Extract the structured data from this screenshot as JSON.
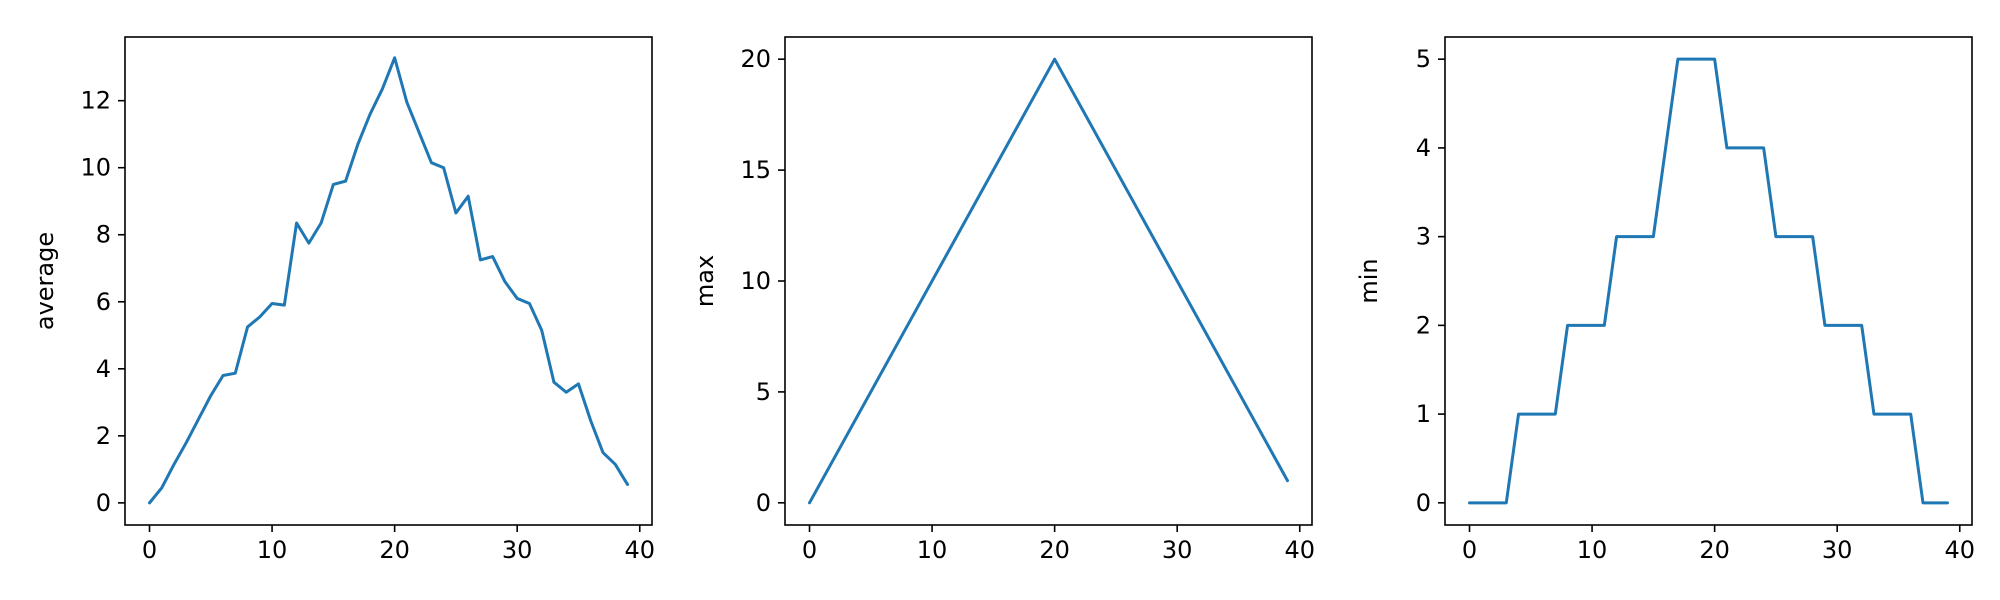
{
  "chart_data": [
    {
      "type": "line",
      "xlabel": "",
      "ylabel": "average",
      "xlim": [
        -2,
        41
      ],
      "ylim": [
        -0.66,
        13.9
      ],
      "xticks": [
        0,
        10,
        20,
        30,
        40
      ],
      "yticks": [
        0,
        2,
        4,
        6,
        8,
        10,
        12
      ],
      "grid": false,
      "color": "#1f77b4",
      "x": [
        0,
        1,
        2,
        3,
        4,
        5,
        6,
        7,
        8,
        9,
        10,
        11,
        12,
        13,
        14,
        15,
        16,
        17,
        18,
        19,
        20,
        21,
        22,
        23,
        24,
        25,
        26,
        27,
        28,
        29,
        30,
        31,
        32,
        33,
        34,
        35,
        36,
        37,
        38,
        39
      ],
      "y": [
        0,
        0.45,
        1.15,
        1.8,
        2.5,
        3.2,
        3.8,
        3.87,
        5.25,
        5.55,
        5.95,
        5.9,
        8.35,
        7.75,
        8.35,
        9.5,
        9.6,
        10.7,
        11.6,
        12.35,
        13.28,
        11.95,
        11.05,
        10.15,
        10.0,
        8.65,
        9.15,
        7.25,
        7.35,
        6.6,
        6.1,
        5.95,
        5.15,
        3.6,
        3.3,
        3.55,
        2.45,
        1.5,
        1.15,
        0.55
      ]
    },
    {
      "type": "line",
      "xlabel": "",
      "ylabel": "max",
      "xlim": [
        -2,
        41
      ],
      "ylim": [
        -1.0,
        21.0
      ],
      "xticks": [
        0,
        10,
        20,
        30,
        40
      ],
      "yticks": [
        0,
        5,
        10,
        15,
        20
      ],
      "grid": false,
      "color": "#1f77b4",
      "x": [
        0,
        20,
        39
      ],
      "y": [
        0,
        20,
        1
      ]
    },
    {
      "type": "line",
      "xlabel": "",
      "ylabel": "min",
      "xlim": [
        -2,
        41
      ],
      "ylim": [
        -0.25,
        5.25
      ],
      "xticks": [
        0,
        10,
        20,
        30,
        40
      ],
      "yticks": [
        0,
        1,
        2,
        3,
        4,
        5
      ],
      "grid": false,
      "color": "#1f77b4",
      "x": [
        0,
        1,
        2,
        3,
        4,
        5,
        6,
        7,
        8,
        9,
        10,
        11,
        12,
        13,
        14,
        15,
        16,
        17,
        18,
        19,
        20,
        21,
        22,
        23,
        24,
        25,
        26,
        27,
        28,
        29,
        30,
        31,
        32,
        33,
        34,
        35,
        36,
        37,
        38,
        39
      ],
      "y": [
        0,
        0,
        0,
        0,
        1,
        1,
        1,
        1,
        2,
        2,
        2,
        2,
        3,
        3,
        3,
        3,
        4,
        5,
        5,
        5,
        5,
        4,
        4,
        4,
        4,
        3,
        3,
        3,
        3,
        2,
        2,
        2,
        2,
        1,
        1,
        1,
        1,
        0,
        0,
        0
      ]
    }
  ]
}
